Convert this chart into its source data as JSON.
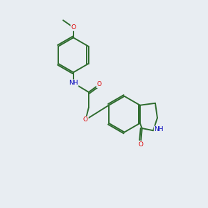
{
  "bg_color": "#e8edf2",
  "bond_color": "#2d6b2d",
  "atom_colors": {
    "O": "#dd0000",
    "N": "#0000bb",
    "C": "#000000"
  },
  "line_width": 1.4,
  "font_size": 6.5,
  "fig_size": [
    3.0,
    3.0
  ],
  "dpi": 100
}
